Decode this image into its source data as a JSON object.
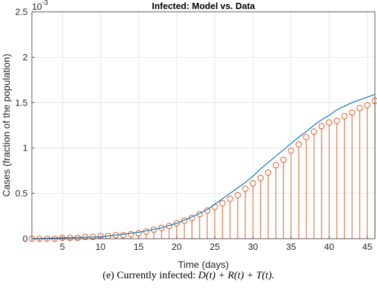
{
  "chart_data": {
    "type": "line",
    "title": "Infected: Model vs. Data",
    "xlabel": "Time (days)",
    "ylabel": "Cases (fraction of the population)",
    "y_exponent_label": "10",
    "y_exponent_power": "-3",
    "xlim": [
      1,
      46
    ],
    "ylim": [
      0,
      0.0025
    ],
    "x_ticks": [
      5,
      10,
      15,
      20,
      25,
      30,
      35,
      40,
      45
    ],
    "x_tick_labels": [
      "5",
      "10",
      "15",
      "20",
      "25",
      "30",
      "35",
      "40",
      "45"
    ],
    "y_ticks": [
      0,
      0.0005,
      0.001,
      0.0015,
      0.002,
      0.0025
    ],
    "y_tick_labels": [
      "0",
      "0.5",
      "1",
      "1.5",
      "2",
      "2.5"
    ],
    "grid": true,
    "series": [
      {
        "kind": "line",
        "color": "#0072BD",
        "x": [
          1,
          5,
          10,
          15,
          18,
          20,
          22,
          24,
          25,
          26,
          27,
          28,
          29,
          30,
          31,
          32,
          33,
          34,
          35,
          36,
          37,
          38,
          39,
          40,
          41,
          42,
          43,
          44,
          45,
          46
        ],
        "values": [
          0.0,
          1e-05,
          2e-05,
          7e-05,
          0.00012,
          0.00017,
          0.00024,
          0.00032,
          0.00038,
          0.00044,
          0.0005,
          0.00056,
          0.00062,
          0.00069,
          0.00077,
          0.00084,
          0.00091,
          0.00098,
          0.00105,
          0.00112,
          0.00118,
          0.00125,
          0.00131,
          0.00136,
          0.00142,
          0.00146,
          0.0015,
          0.00153,
          0.00156,
          0.00159
        ]
      },
      {
        "kind": "stem",
        "color": "#D95319",
        "x": [
          1,
          2,
          3,
          4,
          5,
          6,
          7,
          8,
          9,
          10,
          11,
          12,
          13,
          14,
          15,
          16,
          17,
          18,
          19,
          20,
          21,
          22,
          23,
          24,
          25,
          26,
          27,
          28,
          29,
          30,
          31,
          32,
          33,
          34,
          35,
          36,
          37,
          38,
          39,
          40,
          41,
          42,
          43,
          44,
          45,
          46
        ],
        "values": [
          0.0,
          0.0,
          0.0,
          0.0,
          1e-05,
          1e-05,
          1e-05,
          2e-05,
          2e-05,
          3e-05,
          3e-05,
          4e-05,
          4e-05,
          5e-05,
          6e-05,
          8e-05,
          0.0001,
          0.00012,
          0.00014,
          0.00017,
          0.0002,
          0.00023,
          0.00027,
          0.00031,
          0.00035,
          0.00039,
          0.00044,
          0.00048,
          0.00055,
          0.00061,
          0.00067,
          0.00073,
          0.00081,
          0.00087,
          0.00097,
          0.00104,
          0.00112,
          0.00118,
          0.00124,
          0.00128,
          0.0013,
          0.00135,
          0.00139,
          0.00144,
          0.00147,
          0.00152
        ]
      }
    ]
  },
  "caption": {
    "prefix": "(e) Currently infected:",
    "formula": "D(t) + R(t) + T(t)."
  }
}
